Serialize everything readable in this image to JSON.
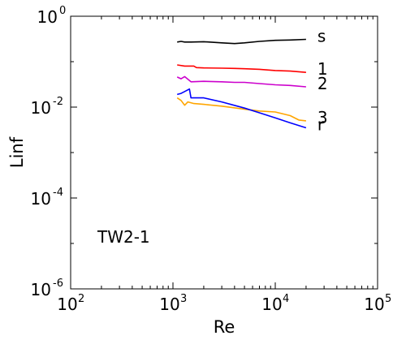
{
  "chart_data": {
    "type": "line",
    "xlabel": "Re",
    "ylabel": "Linf",
    "x_scale": "log",
    "y_scale": "log",
    "xlim": [
      100,
      100000
    ],
    "ylim": [
      1e-06,
      1
    ],
    "x_ticks": [
      {
        "value": 100,
        "base": "10",
        "exp": "2"
      },
      {
        "value": 1000,
        "base": "10",
        "exp": "3"
      },
      {
        "value": 10000,
        "base": "10",
        "exp": "4"
      },
      {
        "value": 100000,
        "base": "10",
        "exp": "5"
      }
    ],
    "y_ticks": [
      {
        "value": 1,
        "base": "10",
        "exp": "0"
      },
      {
        "value": 0.01,
        "base": "10",
        "exp": "-2"
      },
      {
        "value": 0.0001,
        "base": "10",
        "exp": "-4"
      },
      {
        "value": 1e-06,
        "base": "10",
        "exp": "-6"
      }
    ],
    "annotation": "TW2-1",
    "series": [
      {
        "name": "s",
        "color": "#000000",
        "x": [
          1100,
          1200,
          1300,
          1500,
          2000,
          3000,
          4000,
          5000,
          7000,
          10000,
          14000,
          20000
        ],
        "y": [
          0.27,
          0.28,
          0.27,
          0.27,
          0.275,
          0.26,
          0.25,
          0.26,
          0.28,
          0.295,
          0.3,
          0.31
        ]
      },
      {
        "name": "1",
        "color": "#ff0000",
        "x": [
          1100,
          1300,
          1600,
          1700,
          2000,
          3000,
          4000,
          5000,
          7000,
          10000,
          14000,
          20000
        ],
        "y": [
          0.085,
          0.08,
          0.08,
          0.074,
          0.073,
          0.072,
          0.071,
          0.07,
          0.068,
          0.064,
          0.062,
          0.058
        ]
      },
      {
        "name": "2",
        "color": "#cc00cc",
        "x": [
          1100,
          1200,
          1300,
          1500,
          2000,
          3000,
          4000,
          5000,
          7000,
          10000,
          14000,
          20000
        ],
        "y": [
          0.046,
          0.042,
          0.047,
          0.036,
          0.037,
          0.036,
          0.035,
          0.035,
          0.033,
          0.031,
          0.03,
          0.028
        ]
      },
      {
        "name": "3",
        "color": "#ffa500",
        "x": [
          1100,
          1200,
          1300,
          1400,
          1600,
          2000,
          3000,
          5000,
          7000,
          10000,
          14000,
          17000,
          20000
        ],
        "y": [
          0.016,
          0.014,
          0.011,
          0.013,
          0.012,
          0.0115,
          0.0105,
          0.009,
          0.0082,
          0.0078,
          0.0065,
          0.0052,
          0.005
        ]
      },
      {
        "name": "r",
        "color": "#0000ff",
        "x": [
          1100,
          1200,
          1300,
          1450,
          1500,
          2000,
          3000,
          5000,
          7000,
          10000,
          14000,
          20000
        ],
        "y": [
          0.019,
          0.02,
          0.022,
          0.025,
          0.016,
          0.016,
          0.013,
          0.0095,
          0.0075,
          0.0058,
          0.0045,
          0.0035
        ]
      }
    ]
  }
}
